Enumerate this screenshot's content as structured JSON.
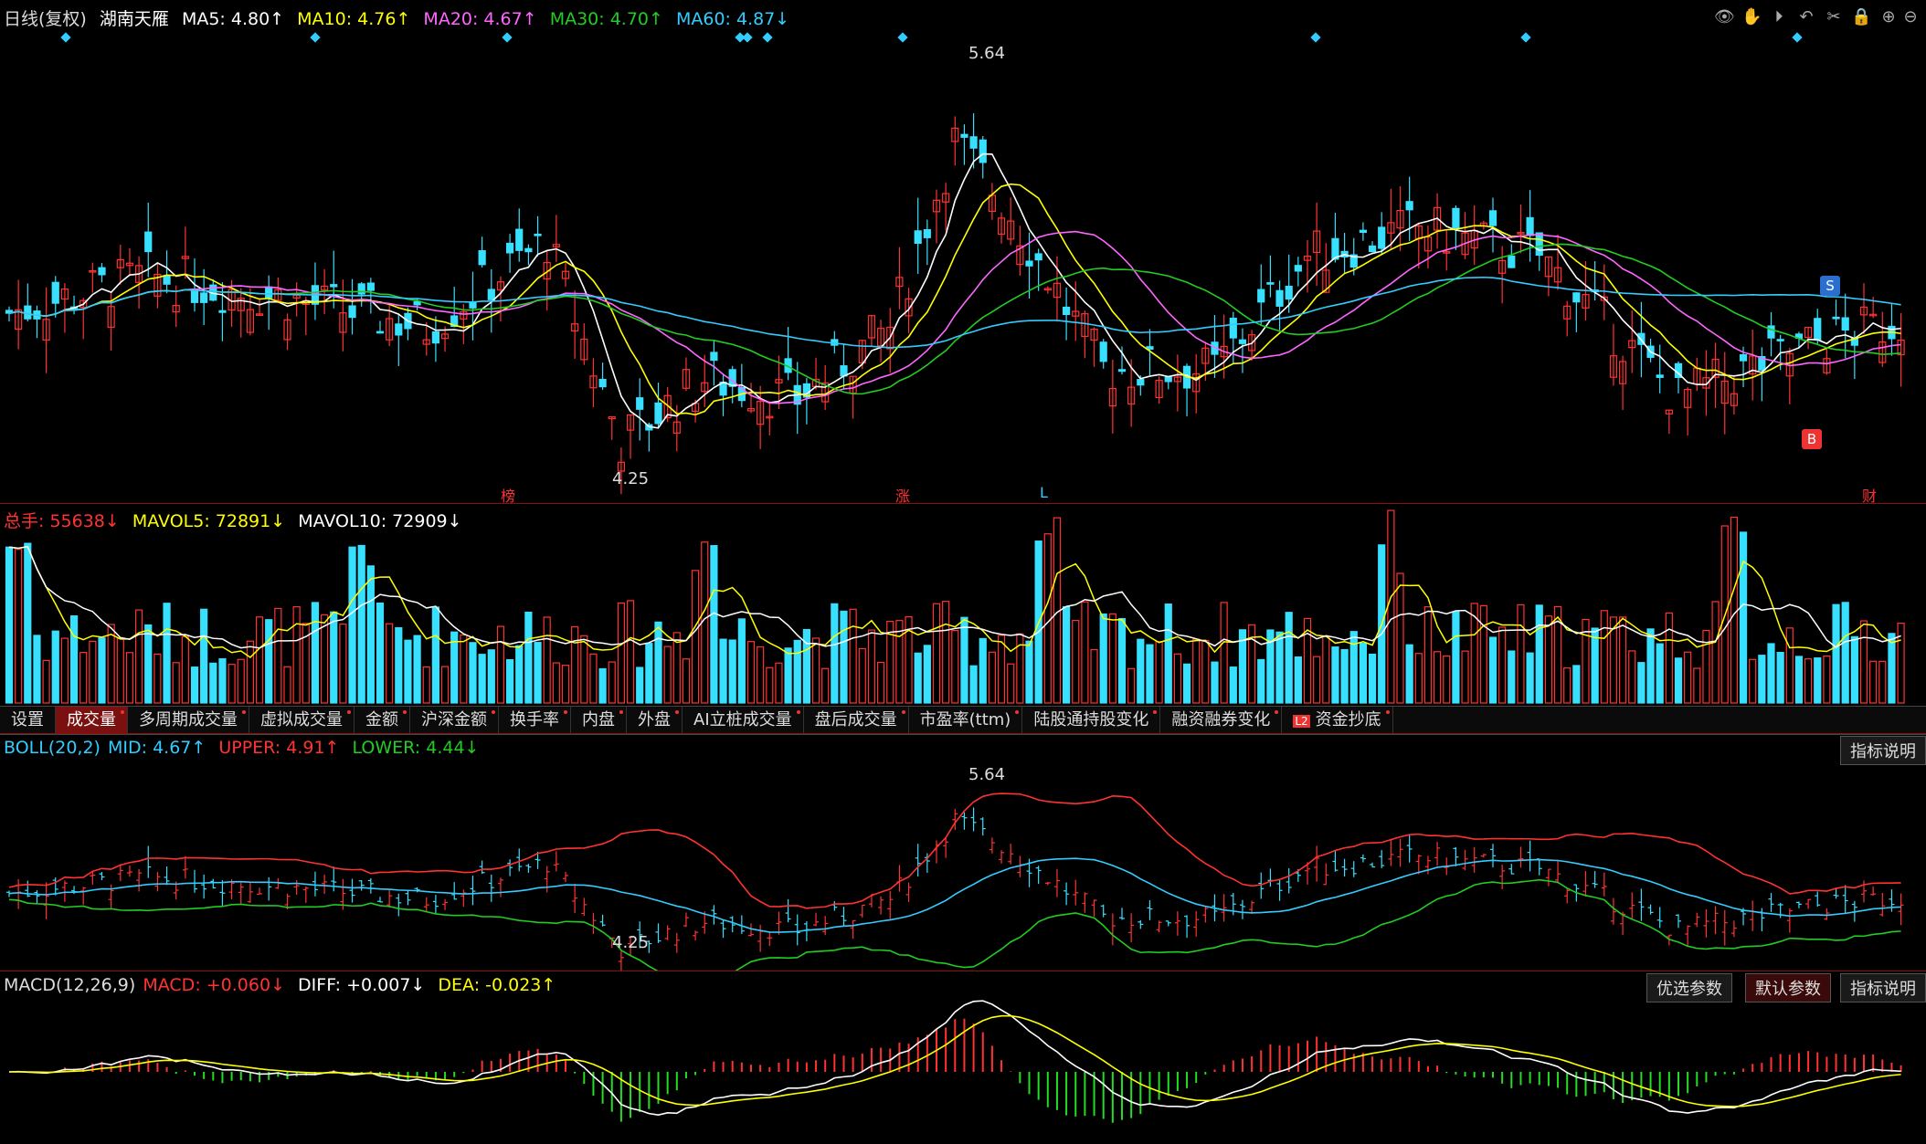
{
  "colors": {
    "up": "#ff3232",
    "down": "#38e0ff",
    "ma5": "#ffffff",
    "ma10": "#ffff00",
    "ma20": "#ff66ff",
    "ma30": "#22cc22",
    "ma60": "#33ccff",
    "label": "#e0e0e0"
  },
  "main": {
    "period": "日线(复权)",
    "stock": "湖南天雁",
    "ma5": "MA5: 4.80↑",
    "ma10": "MA10: 4.76↑",
    "ma20": "MA20: 4.67↑",
    "ma30": "MA30: 4.70↑",
    "ma60": "MA60: 4.87↓",
    "high_label": "5.64",
    "low_label": "4.25",
    "markers": {
      "bang": "榜",
      "zhang": "涨",
      "l": "L",
      "cai": "财"
    },
    "signal_s": "S",
    "signal_b": "B"
  },
  "volume": {
    "total": "总手: 55638↓",
    "mavol5": "MAVOL5: 72891↓",
    "mavol10": "MAVOL10: 72909↓"
  },
  "tabs": [
    "设置",
    "成交量",
    "多周期成交量",
    "虚拟成交量",
    "金额",
    "沪深金额",
    "换手率",
    "内盘",
    "外盘",
    "AI立桩成交量",
    "盘后成交量",
    "市盈率(ttm)",
    "陆股通持股变化",
    "融资融券变化",
    "资金抄底"
  ],
  "tab_badge": "L2",
  "boll": {
    "title": "BOLL(20,2)",
    "mid": "MID: 4.67↑",
    "upper": "UPPER: 4.91↑",
    "lower": "LOWER: 4.44↓",
    "high_label": "5.64",
    "low_label": "4.25",
    "explain": "指标说明"
  },
  "macd": {
    "title": "MACD(12,26,9)",
    "macd": "MACD: +0.060↓",
    "diff": "DIFF: +0.007↓",
    "dea": "DEA: -0.023↑",
    "btn_opt": "优选参数",
    "btn_default": "默认参数",
    "btn_explain": "指标说明"
  },
  "toolbar": [
    "eye-icon",
    "hand-icon",
    "play-icon",
    "undo-icon",
    "scissors-icon",
    "lock-icon",
    "zoom-in-icon",
    "zoom-out-icon"
  ]
}
